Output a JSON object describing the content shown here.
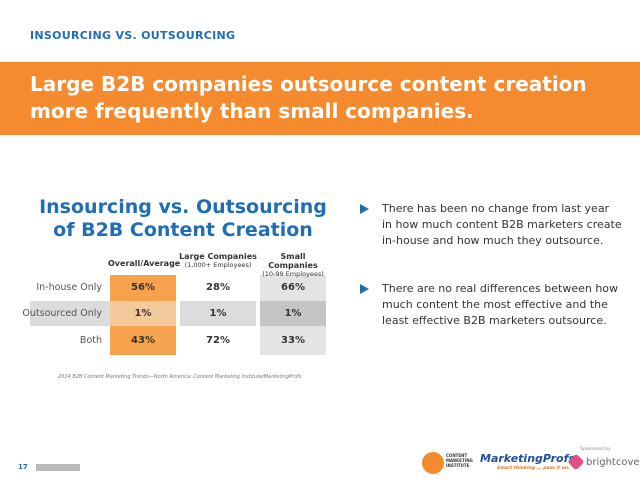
{
  "header": {
    "section": "INSOURCING VS. OUTSOURCING",
    "title_lines": [
      "Large B2B companies outsource content creation",
      "more frequently than small companies."
    ]
  },
  "table": {
    "title_lines": [
      "Insourcing vs. Outsourcing",
      "of B2B Content Creation"
    ],
    "columns": [
      {
        "name": "Overall/Average"
      },
      {
        "name": "Large Companies",
        "note": "(1,000+ Employees)"
      },
      {
        "name": "Small Companies",
        "note": "(10-99 Employees)"
      }
    ],
    "rows": [
      [
        "In-house Only",
        "56%",
        "28%",
        "66%"
      ],
      [
        "Outsourced Only",
        "1%",
        "1%",
        "1%"
      ],
      [
        "Both",
        "43%",
        "72%",
        "33%"
      ]
    ],
    "source": "2014 B2B Content Marketing Trends—North America: Content Marketing Institute/MarketingProfs"
  },
  "bullets": [
    "There has been no change from last year in how much content B2B marketers create in-house and how much they outsource.",
    "There are no real differences between how much content the most effective and the least effective B2B marketers outsource."
  ],
  "footer": {
    "page": "17",
    "logos": [
      "CONTENT MARKETING INSTITUTE",
      "MarketingProfs",
      "Smart thinking ... pass it on.",
      "Sponsored by",
      "brightcove"
    ]
  }
}
